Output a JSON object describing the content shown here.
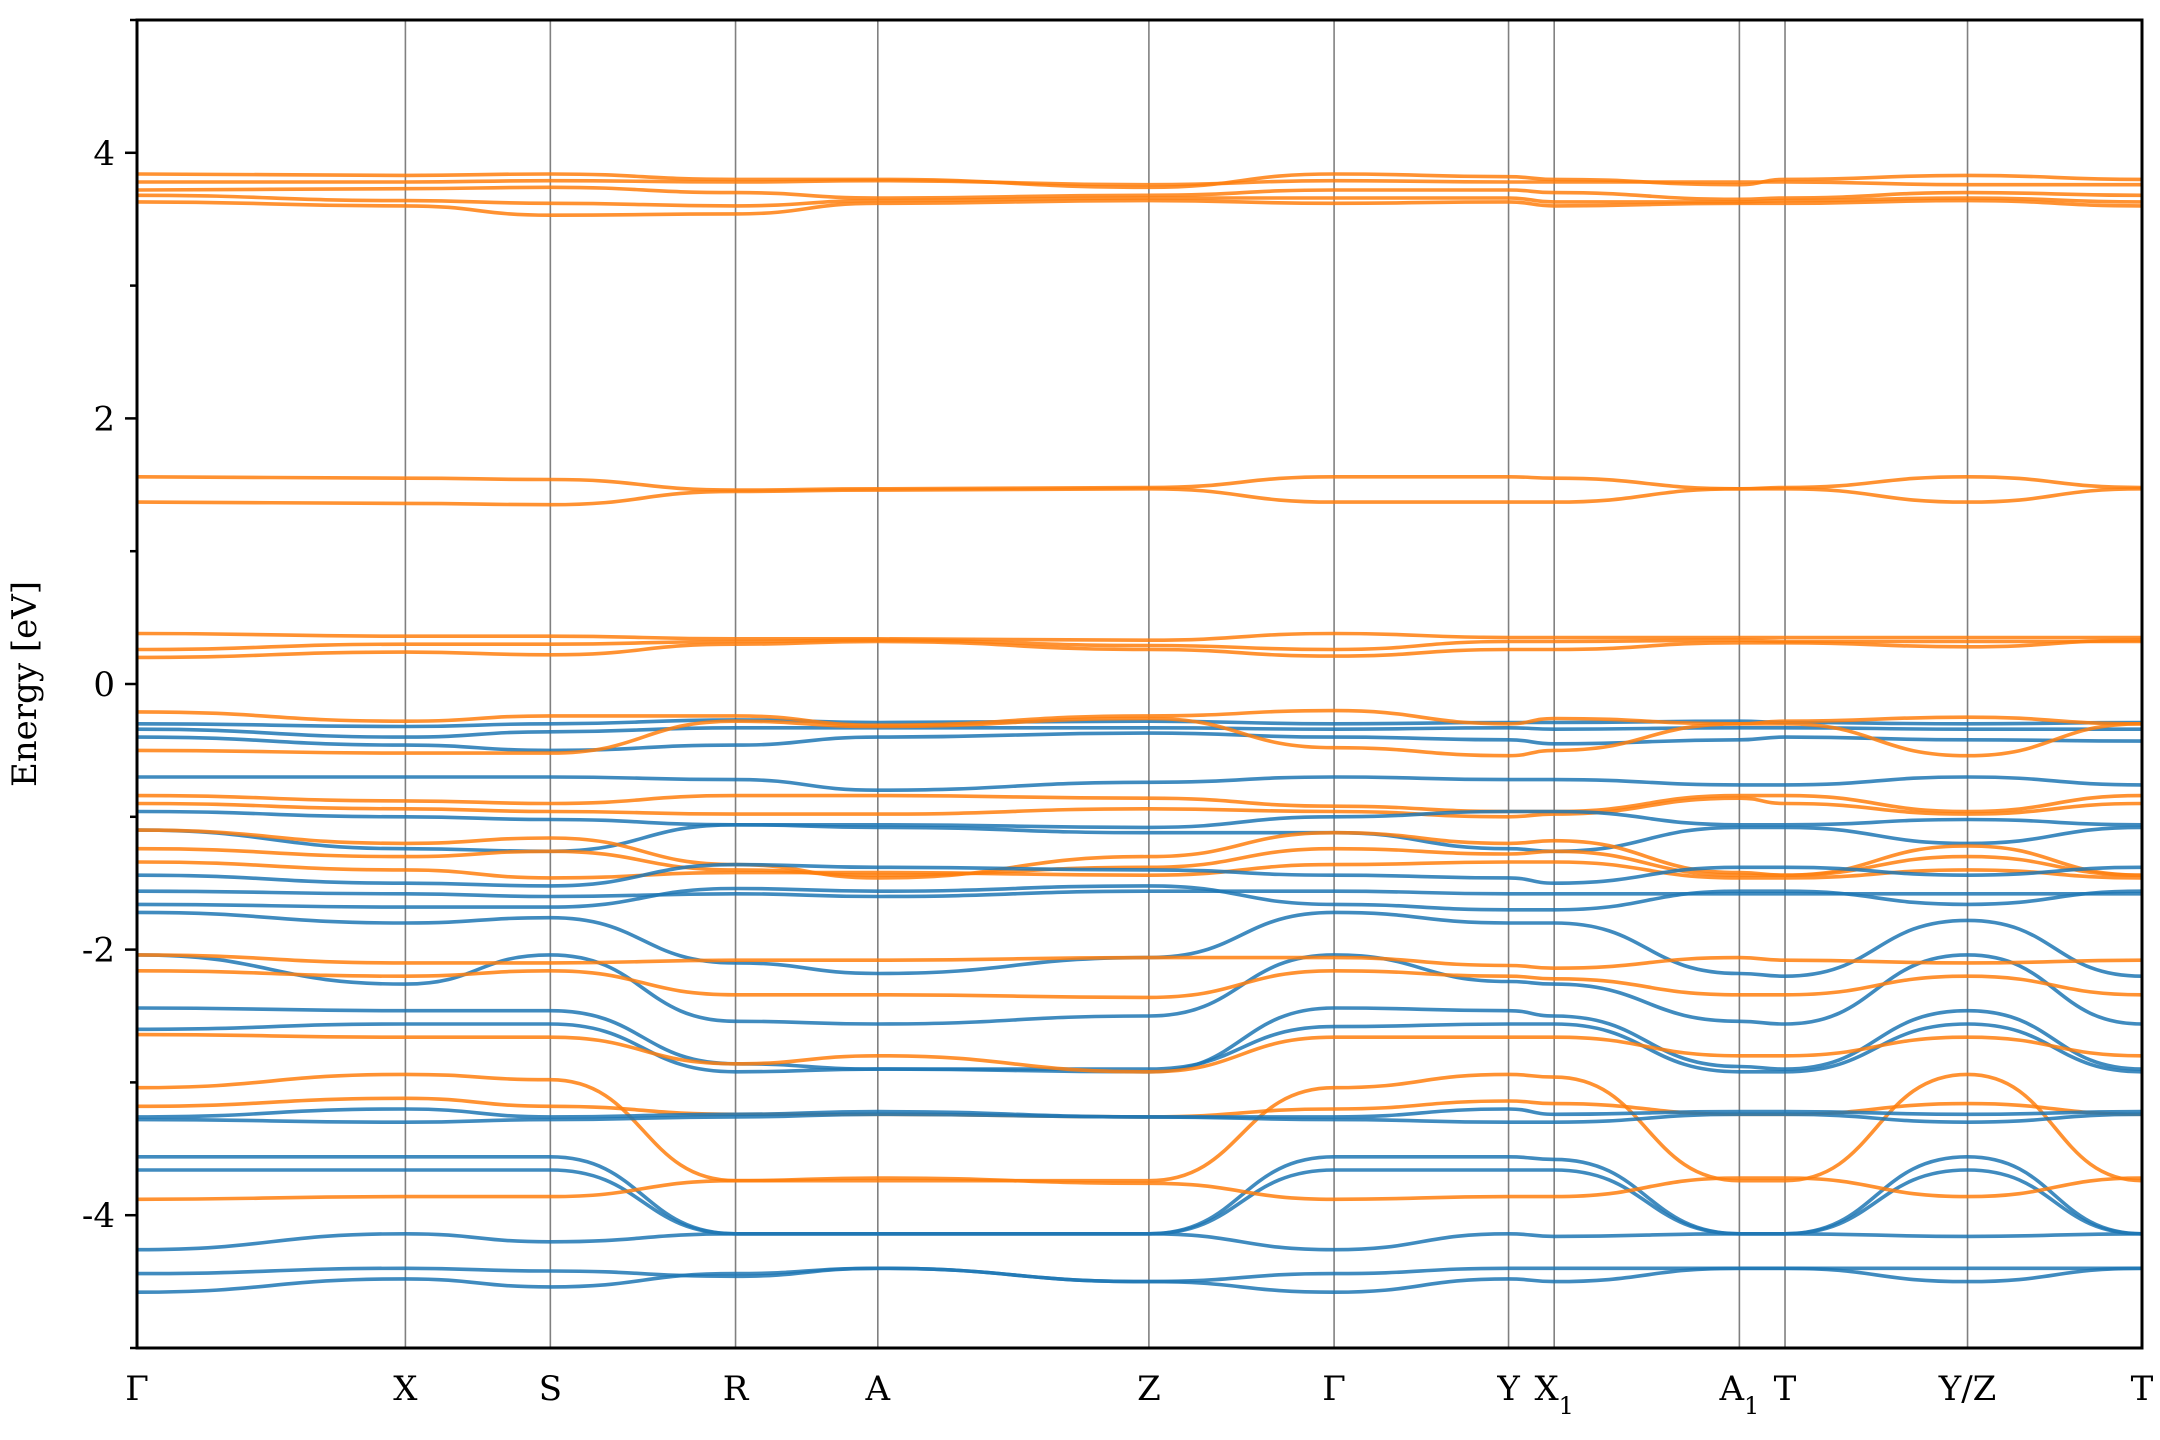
{
  "chart_data": {
    "type": "line",
    "title": "",
    "xlabel": "",
    "ylabel": "Energy [eV]",
    "ylim": [
      -5,
      5
    ],
    "yticks": [
      -4,
      -2,
      0,
      2,
      4
    ],
    "ytick_labels": [
      "-4",
      "-2",
      "0",
      "2",
      "4"
    ],
    "grid": "vertical lines at high-symmetry points",
    "legend": "none",
    "colors": {
      "valence": "#1f77b4",
      "conduction": "#ff7f0e",
      "kline": "#808080"
    },
    "x_label_display": [
      "Γ",
      "X",
      "S",
      "R",
      "A",
      "Z",
      "Γ",
      "Y",
      "X1",
      "A1",
      "T",
      "Y/Z",
      "T"
    ],
    "kpoints": [
      {
        "label": "Γ",
        "x": 0.0
      },
      {
        "label": "X",
        "x": 1.0
      },
      {
        "label": "S",
        "x": 1.54
      },
      {
        "label": "R",
        "x": 2.23
      },
      {
        "label": "A",
        "x": 2.76
      },
      {
        "label": "Z",
        "x": 3.77
      },
      {
        "label": "Γ",
        "x": 4.46
      },
      {
        "label": "Y",
        "x": 5.11
      },
      {
        "label": "X1",
        "x": 5.28
      },
      {
        "label": "A1",
        "x": 5.97
      },
      {
        "label": "T",
        "x": 6.14
      },
      {
        "label": "Y/Z",
        "x": 6.82
      },
      {
        "label": "T",
        "x": 7.47
      }
    ],
    "series": [
      {
        "band": "conduction",
        "values": [
          3.84,
          3.83,
          3.84,
          3.8,
          3.8,
          3.74,
          3.84,
          3.82,
          3.8,
          3.76,
          3.8,
          3.83,
          3.8
        ]
      },
      {
        "band": "conduction",
        "values": [
          3.78,
          3.78,
          3.79,
          3.78,
          3.79,
          3.76,
          3.79,
          3.78,
          3.78,
          3.78,
          3.78,
          3.76,
          3.76
        ]
      },
      {
        "band": "conduction",
        "values": [
          3.72,
          3.73,
          3.74,
          3.7,
          3.66,
          3.68,
          3.72,
          3.72,
          3.7,
          3.65,
          3.66,
          3.7,
          3.68
        ]
      },
      {
        "band": "conduction",
        "values": [
          3.68,
          3.64,
          3.62,
          3.6,
          3.64,
          3.66,
          3.66,
          3.66,
          3.63,
          3.63,
          3.64,
          3.66,
          3.63
        ]
      },
      {
        "band": "conduction",
        "values": [
          3.63,
          3.6,
          3.53,
          3.54,
          3.62,
          3.64,
          3.62,
          3.63,
          3.6,
          3.62,
          3.62,
          3.64,
          3.6
        ]
      },
      {
        "band": "conduction",
        "values": [
          1.56,
          1.55,
          1.54,
          1.46,
          1.47,
          1.48,
          1.56,
          1.56,
          1.55,
          1.47,
          1.48,
          1.56,
          1.48
        ]
      },
      {
        "band": "conduction",
        "values": [
          1.37,
          1.36,
          1.35,
          1.45,
          1.46,
          1.47,
          1.37,
          1.37,
          1.37,
          1.47,
          1.47,
          1.37,
          1.47
        ]
      },
      {
        "band": "conduction",
        "values": [
          0.38,
          0.36,
          0.36,
          0.34,
          0.34,
          0.33,
          0.38,
          0.35,
          0.35,
          0.35,
          0.35,
          0.35,
          0.35
        ]
      },
      {
        "band": "conduction",
        "values": [
          0.26,
          0.3,
          0.3,
          0.32,
          0.33,
          0.29,
          0.26,
          0.32,
          0.32,
          0.33,
          0.32,
          0.32,
          0.32
        ]
      },
      {
        "band": "conduction",
        "values": [
          0.2,
          0.24,
          0.22,
          0.3,
          0.32,
          0.26,
          0.21,
          0.26,
          0.26,
          0.31,
          0.31,
          0.28,
          0.33
        ]
      },
      {
        "band": "valence",
        "values": [
          -0.3,
          -0.32,
          -0.3,
          -0.27,
          -0.29,
          -0.28,
          -0.3,
          -0.29,
          -0.29,
          -0.28,
          -0.29,
          -0.3,
          -0.29
        ]
      },
      {
        "band": "valence",
        "values": [
          -0.34,
          -0.4,
          -0.36,
          -0.33,
          -0.33,
          -0.33,
          -0.34,
          -0.33,
          -0.34,
          -0.33,
          -0.33,
          -0.34,
          -0.34
        ]
      },
      {
        "band": "valence",
        "values": [
          -0.4,
          -0.46,
          -0.5,
          -0.46,
          -0.4,
          -0.37,
          -0.4,
          -0.42,
          -0.45,
          -0.42,
          -0.4,
          -0.42,
          -0.43
        ]
      },
      {
        "band": "conduction",
        "values": [
          -0.21,
          -0.28,
          -0.24,
          -0.24,
          -0.31,
          -0.24,
          -0.2,
          -0.3,
          -0.26,
          -0.3,
          -0.28,
          -0.25,
          -0.3
        ]
      },
      {
        "band": "conduction",
        "values": [
          -0.5,
          -0.52,
          -0.52,
          -0.28,
          -0.32,
          -0.26,
          -0.48,
          -0.54,
          -0.5,
          -0.3,
          -0.3,
          -0.54,
          -0.3
        ]
      },
      {
        "band": "valence",
        "values": [
          -0.7,
          -0.7,
          -0.7,
          -0.72,
          -0.8,
          -0.74,
          -0.7,
          -0.72,
          -0.72,
          -0.76,
          -0.76,
          -0.7,
          -0.76
        ]
      },
      {
        "band": "conduction",
        "values": [
          -0.84,
          -0.88,
          -0.9,
          -0.84,
          -0.84,
          -0.86,
          -0.92,
          -0.96,
          -0.96,
          -0.84,
          -0.84,
          -0.96,
          -0.84
        ]
      },
      {
        "band": "conduction",
        "values": [
          -0.9,
          -0.94,
          -0.96,
          -0.98,
          -0.98,
          -0.94,
          -0.96,
          -1.0,
          -0.98,
          -0.86,
          -0.9,
          -0.98,
          -0.9
        ]
      },
      {
        "band": "valence",
        "values": [
          -0.96,
          -1.0,
          -1.02,
          -1.06,
          -1.06,
          -1.08,
          -1.0,
          -0.96,
          -0.96,
          -1.06,
          -1.06,
          -1.02,
          -1.06
        ]
      },
      {
        "band": "valence",
        "values": [
          -1.1,
          -1.24,
          -1.26,
          -1.06,
          -1.08,
          -1.12,
          -1.12,
          -1.24,
          -1.26,
          -1.08,
          -1.08,
          -1.2,
          -1.08
        ]
      },
      {
        "band": "conduction",
        "values": [
          -1.1,
          -1.2,
          -1.16,
          -1.36,
          -1.46,
          -1.3,
          -1.12,
          -1.2,
          -1.18,
          -1.42,
          -1.44,
          -1.22,
          -1.44
        ]
      },
      {
        "band": "conduction",
        "values": [
          -1.24,
          -1.3,
          -1.26,
          -1.4,
          -1.44,
          -1.38,
          -1.24,
          -1.28,
          -1.26,
          -1.44,
          -1.44,
          -1.3,
          -1.44
        ]
      },
      {
        "band": "conduction",
        "values": [
          -1.34,
          -1.4,
          -1.46,
          -1.42,
          -1.42,
          -1.44,
          -1.36,
          -1.34,
          -1.34,
          -1.46,
          -1.46,
          -1.4,
          -1.46
        ]
      },
      {
        "band": "valence",
        "values": [
          -1.44,
          -1.5,
          -1.52,
          -1.36,
          -1.38,
          -1.4,
          -1.44,
          -1.46,
          -1.5,
          -1.38,
          -1.38,
          -1.44,
          -1.38
        ]
      },
      {
        "band": "valence",
        "values": [
          -1.56,
          -1.58,
          -1.6,
          -1.58,
          -1.6,
          -1.56,
          -1.56,
          -1.58,
          -1.58,
          -1.58,
          -1.58,
          -1.58,
          -1.58
        ]
      },
      {
        "band": "valence",
        "values": [
          -1.66,
          -1.68,
          -1.68,
          -1.54,
          -1.56,
          -1.52,
          -1.66,
          -1.7,
          -1.7,
          -1.56,
          -1.56,
          -1.66,
          -1.56
        ]
      },
      {
        "band": "valence",
        "values": [
          -1.72,
          -1.8,
          -1.76,
          -2.1,
          -2.18,
          -2.06,
          -1.72,
          -1.8,
          -1.8,
          -2.18,
          -2.2,
          -1.78,
          -2.2
        ]
      },
      {
        "band": "valence",
        "values": [
          -2.04,
          -2.26,
          -2.04,
          -2.54,
          -2.56,
          -2.5,
          -2.04,
          -2.24,
          -2.26,
          -2.54,
          -2.56,
          -2.04,
          -2.56
        ]
      },
      {
        "band": "conduction",
        "values": [
          -2.04,
          -2.1,
          -2.1,
          -2.08,
          -2.08,
          -2.06,
          -2.06,
          -2.12,
          -2.14,
          -2.06,
          -2.08,
          -2.1,
          -2.08
        ]
      },
      {
        "band": "conduction",
        "values": [
          -2.16,
          -2.2,
          -2.16,
          -2.34,
          -2.34,
          -2.36,
          -2.16,
          -2.2,
          -2.22,
          -2.34,
          -2.34,
          -2.2,
          -2.34
        ]
      },
      {
        "band": "valence",
        "values": [
          -2.44,
          -2.46,
          -2.46,
          -2.86,
          -2.9,
          -2.92,
          -2.44,
          -2.46,
          -2.5,
          -2.88,
          -2.9,
          -2.46,
          -2.9
        ]
      },
      {
        "band": "valence",
        "values": [
          -2.6,
          -2.56,
          -2.56,
          -2.92,
          -2.9,
          -2.9,
          -2.58,
          -2.56,
          -2.56,
          -2.92,
          -2.92,
          -2.56,
          -2.92
        ]
      },
      {
        "band": "conduction",
        "values": [
          -2.64,
          -2.66,
          -2.66,
          -2.86,
          -2.8,
          -2.92,
          -2.66,
          -2.66,
          -2.66,
          -2.8,
          -2.8,
          -2.66,
          -2.8
        ]
      },
      {
        "band": "conduction",
        "values": [
          -3.04,
          -2.94,
          -2.98,
          -3.74,
          -3.74,
          -3.74,
          -3.04,
          -2.94,
          -2.96,
          -3.74,
          -3.74,
          -2.94,
          -3.74
        ]
      },
      {
        "band": "conduction",
        "values": [
          -3.18,
          -3.12,
          -3.18,
          -3.24,
          -3.24,
          -3.26,
          -3.2,
          -3.14,
          -3.16,
          -3.24,
          -3.24,
          -3.16,
          -3.24
        ]
      },
      {
        "band": "valence",
        "values": [
          -3.26,
          -3.2,
          -3.26,
          -3.24,
          -3.22,
          -3.26,
          -3.26,
          -3.2,
          -3.24,
          -3.22,
          -3.22,
          -3.24,
          -3.22
        ]
      },
      {
        "band": "valence",
        "values": [
          -3.28,
          -3.3,
          -3.28,
          -3.26,
          -3.24,
          -3.26,
          -3.28,
          -3.3,
          -3.3,
          -3.24,
          -3.24,
          -3.3,
          -3.24
        ]
      },
      {
        "band": "valence",
        "values": [
          -3.56,
          -3.56,
          -3.56,
          -4.14,
          -4.14,
          -4.14,
          -3.56,
          -3.56,
          -3.58,
          -4.14,
          -4.14,
          -3.56,
          -4.14
        ]
      },
      {
        "band": "valence",
        "values": [
          -3.66,
          -3.66,
          -3.66,
          -4.14,
          -4.14,
          -4.14,
          -3.66,
          -3.66,
          -3.66,
          -4.14,
          -4.14,
          -3.66,
          -4.14
        ]
      },
      {
        "band": "conduction",
        "values": [
          -3.88,
          -3.86,
          -3.86,
          -3.74,
          -3.72,
          -3.76,
          -3.88,
          -3.86,
          -3.86,
          -3.72,
          -3.72,
          -3.86,
          -3.72
        ]
      },
      {
        "band": "valence",
        "values": [
          -4.26,
          -4.14,
          -4.2,
          -4.14,
          -4.14,
          -4.14,
          -4.26,
          -4.14,
          -4.16,
          -4.14,
          -4.14,
          -4.16,
          -4.14
        ]
      },
      {
        "band": "valence",
        "values": [
          -4.44,
          -4.4,
          -4.42,
          -4.46,
          -4.4,
          -4.5,
          -4.44,
          -4.4,
          -4.4,
          -4.4,
          -4.4,
          -4.4,
          -4.4
        ]
      },
      {
        "band": "valence",
        "values": [
          -4.58,
          -4.48,
          -4.54,
          -4.44,
          -4.4,
          -4.5,
          -4.58,
          -4.48,
          -4.5,
          -4.4,
          -4.4,
          -4.5,
          -4.4
        ]
      }
    ]
  }
}
